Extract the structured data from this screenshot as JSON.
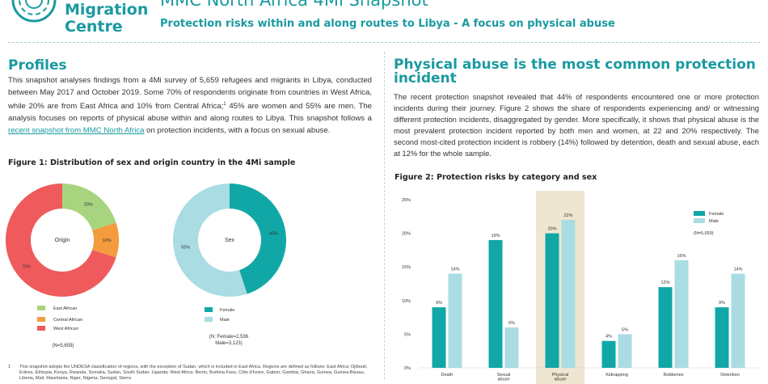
{
  "header": {
    "logo_line1": "Migration",
    "logo_line2": "Centre",
    "title": "MMC North Africa 4Mi Snapshot",
    "subtitle": "Protection risks within and along routes to Libya - A focus on physical abuse"
  },
  "profiles": {
    "heading": "Profiles",
    "text_before_link": "This snapshot analyses findings from a 4Mi survey of 5,659 refugees and migrants in Libya, conducted between May 2017 and October 2019. Some 70% of respondents originate from countries in West Africa, while 20% are from East Africa and 10% from Central Africa;",
    "footnote_ref": "1",
    "text_middle": " 45% are women and 55% are men. The analysis focuses on reports of physical abuse within and along routes to Libya. This snapshot follows a ",
    "link_text": "recent snapshot from MMC North Africa",
    "text_after_link": " on protection incidents, with a focus on sexual abuse."
  },
  "figure1": {
    "title": "Figure 1: Distribution of sex and origin country in the 4Mi sample",
    "origin_center": "Origin",
    "sex_center": "Sex",
    "origin_n": "(N=5,659)",
    "sex_n_line1": "(N: Female=2,536",
    "sex_n_line2": "Male=3,123)"
  },
  "chart_data": [
    {
      "type": "pie",
      "title": "Origin",
      "slices": [
        {
          "label": "East African",
          "value": 20,
          "display": "20%",
          "color": "#a8d47f"
        },
        {
          "label": "Central African",
          "value": 10,
          "display": "10%",
          "color": "#f39b3d"
        },
        {
          "label": "West African",
          "value": 70,
          "display": "70%",
          "color": "#ef5a5c"
        }
      ]
    },
    {
      "type": "pie",
      "title": "Sex",
      "slices": [
        {
          "label": "Female",
          "value": 45,
          "display": "45%",
          "color": "#12a7a7"
        },
        {
          "label": "Male",
          "value": 55,
          "display": "55%",
          "color": "#a9dce3"
        }
      ]
    },
    {
      "type": "bar",
      "title": "Figure 2: Protection risks by category and sex",
      "categories": [
        "Death",
        "Sexual abuse",
        "Physical abuse",
        "Kidnapping",
        "Robberies",
        "Detention"
      ],
      "category_lines": [
        [
          "Death"
        ],
        [
          "Sexual",
          "abuse"
        ],
        [
          "Physical",
          "abuse"
        ],
        [
          "Kidnapping"
        ],
        [
          "Robberies"
        ],
        [
          "Detention"
        ]
      ],
      "series": [
        {
          "name": "Female",
          "values": [
            9,
            19,
            20,
            4,
            12,
            9
          ],
          "color": "#12a7a7"
        },
        {
          "name": "Male",
          "values": [
            14,
            6,
            22,
            5,
            16,
            14
          ],
          "color": "#a9dce3"
        }
      ],
      "highlight_category": "Physical abuse",
      "highlight_color": "#efe6d2",
      "ylim": [
        0,
        25
      ],
      "yticks": [
        "0%",
        "5%",
        "10%",
        "15%",
        "20%",
        "25%"
      ],
      "legend_note": "(N=5,659)",
      "legend_position": "top-right",
      "grid": false
    }
  ],
  "physical": {
    "heading": "Physical abuse is the most common protection incident",
    "text": "The recent protection snapshot revealed that 44% of respondents encountered one or more protection incidents during their journey. Figure 2 shows the share of respondents experiencing and/ or witnessing different protection incidents, disaggregated by gender. More specifically, it shows that physical abuse is the most prevalent protection incident reported by both men and women, at 22 and 20% respectively. The second most-cited protection incident is robbery (14%) followed by detention, death and sexual abuse, each at 12% for the whole sample."
  },
  "figure2": {
    "title": "Figure 2: Protection risks by category and sex"
  },
  "footnote": {
    "number": "1",
    "text": "This snapshot adopts the UNDESA classification of regions, with the exception of Sudan, which is included in East Africa. Regions are defined as follows: East Africa: Djibouti, Eritrea, Ethiopia, Kenya, Rwanda, Somalia, Sudan, South Sudan, Uganda; West Africa: Benin, Burkina Faso, Côte d'Ivoire, Gabon, Gambia, Ghana, Guinea, Guinea-Bissau, Liberia, Mali, Mauritania, Niger, Nigeria, Senegal, Sierra"
  }
}
